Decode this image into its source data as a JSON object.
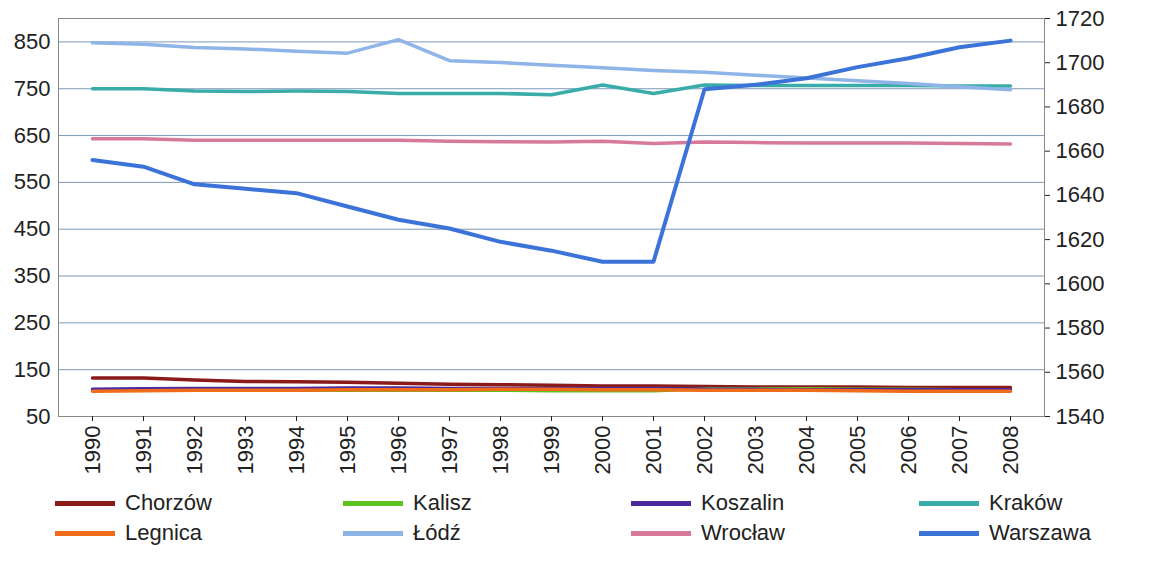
{
  "chart_data": {
    "type": "line",
    "categories": [
      "1990",
      "1991",
      "1992",
      "1993",
      "1994",
      "1995",
      "1996",
      "1997",
      "1998",
      "1999",
      "2000",
      "2001",
      "2002",
      "2003",
      "2004",
      "2005",
      "2006",
      "2007",
      "2008"
    ],
    "ylim": [
      50,
      900
    ],
    "yticks": [
      50,
      150,
      250,
      350,
      450,
      550,
      650,
      750,
      850
    ],
    "y2lim": [
      1540,
      1720
    ],
    "y2ticks": [
      1540,
      1560,
      1580,
      1600,
      1620,
      1640,
      1660,
      1680,
      1700,
      1720
    ],
    "grid": true,
    "legend": "bottom",
    "series": [
      {
        "name": "Chorzów",
        "color": "#8b1a1a",
        "values": [
          132,
          132,
          128,
          125,
          124,
          123,
          121,
          119,
          118,
          117,
          115,
          115,
          114,
          113,
          113,
          113,
          112,
          112,
          112
        ]
      },
      {
        "name": "Kalisz",
        "color": "#5cc21f",
        "values": [
          106,
          106,
          106,
          106,
          106,
          106,
          106,
          106,
          106,
          105,
          105,
          105,
          109,
          109,
          109,
          108,
          108,
          107,
          107
        ]
      },
      {
        "name": "Koszalin",
        "color": "#4b2aa0",
        "values": [
          108,
          109,
          110,
          110,
          110,
          111,
          111,
          110,
          110,
          110,
          110,
          110,
          108,
          108,
          107,
          107,
          107,
          107,
          107
        ]
      },
      {
        "name": "Kraków",
        "color": "#3aacaa",
        "values": [
          750,
          750,
          745,
          744,
          745,
          744,
          740,
          740,
          740,
          737,
          758,
          740,
          758,
          757,
          757,
          757,
          757,
          756,
          756
        ]
      },
      {
        "name": "Legnica",
        "color": "#f06b1a",
        "values": [
          104,
          105,
          106,
          106,
          106,
          107,
          107,
          107,
          108,
          108,
          107,
          107,
          106,
          106,
          106,
          105,
          104,
          104,
          104
        ]
      },
      {
        "name": "Łódź",
        "color": "#8fb4e8",
        "values": [
          848,
          845,
          838,
          835,
          830,
          826,
          855,
          810,
          806,
          800,
          795,
          789,
          785,
          779,
          773,
          767,
          761,
          754,
          748
        ]
      },
      {
        "name": "Wrocław",
        "color": "#d77a9a",
        "values": [
          643,
          643,
          640,
          640,
          640,
          640,
          640,
          638,
          637,
          636,
          638,
          633,
          636,
          635,
          634,
          634,
          634,
          633,
          632
        ]
      },
      {
        "name": "Warszawa",
        "color": "#3b73d9",
        "axis": "y2",
        "values": [
          1656,
          1653,
          1645,
          1643,
          1641,
          1635,
          1629,
          1625,
          1619,
          1615,
          1610,
          1610,
          1688,
          1690,
          1693,
          1698,
          1702,
          1707,
          1710
        ]
      }
    ]
  }
}
